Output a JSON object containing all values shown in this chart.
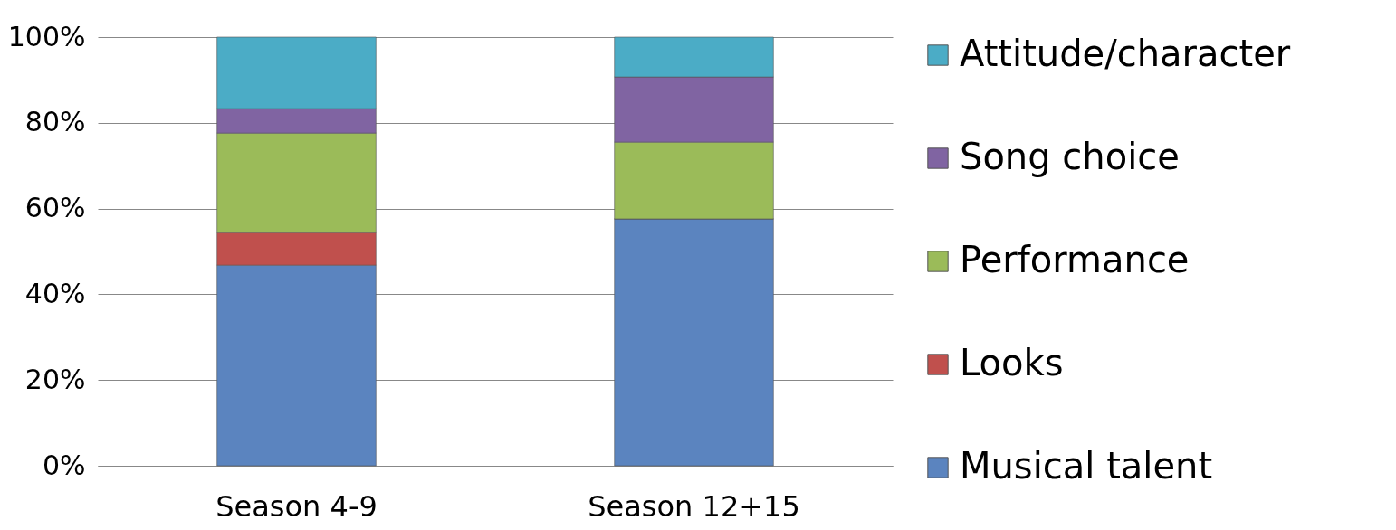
{
  "chart_data": {
    "type": "bar",
    "stacked": true,
    "categories": [
      "Season 4-9",
      "Season 12+15"
    ],
    "series": [
      {
        "name": "Musical talent",
        "color": "#5b84bf",
        "values": [
          46.8,
          57.6
        ]
      },
      {
        "name": "Looks",
        "color": "#c0504d",
        "values": [
          7.6,
          0
        ]
      },
      {
        "name": "Performance",
        "color": "#9bbb59",
        "values": [
          23.2,
          17.9
        ]
      },
      {
        "name": "Song choice",
        "color": "#8064a2",
        "values": [
          5.7,
          15.2
        ]
      },
      {
        "name": "Attitude/character",
        "color": "#4bacc6",
        "values": [
          16.7,
          9.3
        ]
      }
    ],
    "ylim": [
      0,
      100
    ],
    "yticks": [
      {
        "value": 0,
        "label": "0%"
      },
      {
        "value": 20,
        "label": "20%"
      },
      {
        "value": 40,
        "label": "40%"
      },
      {
        "value": 60,
        "label": "60%"
      },
      {
        "value": 80,
        "label": "80%"
      },
      {
        "value": 100,
        "label": "100%"
      }
    ],
    "grid": "y",
    "legend": "right"
  }
}
